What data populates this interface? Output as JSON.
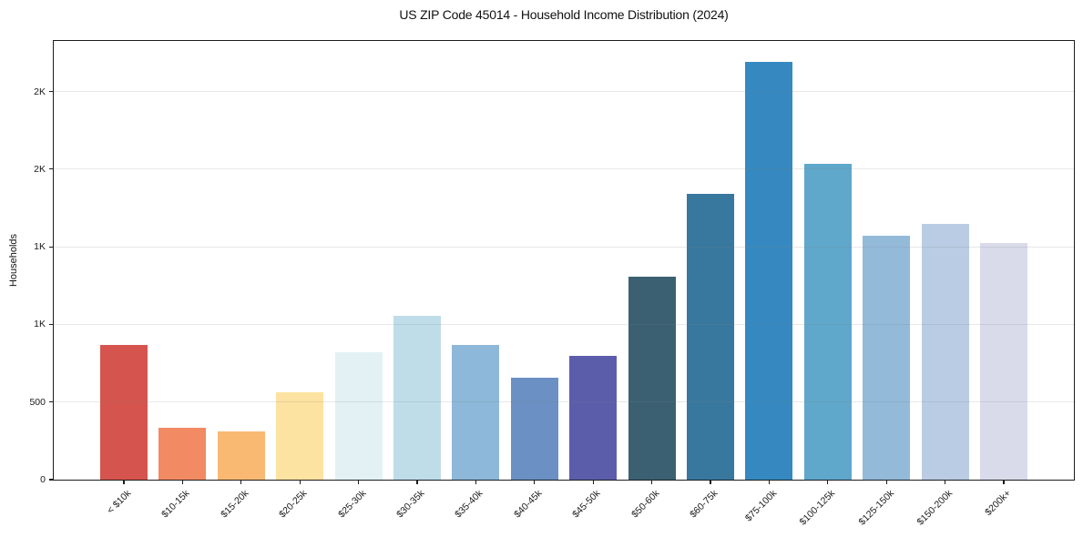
{
  "chart_data": {
    "type": "bar",
    "title": "US ZIP Code 45014 - Household Income Distribution (2024)",
    "xlabel": "",
    "ylabel": "Households",
    "categories": [
      "< $10k",
      "$10-15k",
      "$15-20k",
      "$20-25k",
      "$25-30k",
      "$30-35k",
      "$35-40k",
      "$40-45k",
      "$45-50k",
      "$50-60k",
      "$60-75k",
      "$75-100k",
      "$100-125k",
      "$125-150k",
      "$150-200k",
      "$200k+"
    ],
    "values": [
      865,
      333,
      310,
      565,
      818,
      1058,
      870,
      655,
      800,
      1305,
      1843,
      2691,
      2036,
      1574,
      1650,
      1527
    ],
    "bar_colors": [
      "#d5544e",
      "#f28a64",
      "#fab973",
      "#fde3a1",
      "#e4f1f4",
      "#bedde9",
      "#8db8d9",
      "#6a90c4",
      "#5b5dab",
      "#3b6072",
      "#38789f",
      "#3589c0",
      "#5fa7cb",
      "#93bad9",
      "#b9cce3",
      "#d9dbea"
    ],
    "ylim": [
      0,
      2826
    ],
    "yticks": [
      {
        "value": 0,
        "label": "0"
      },
      {
        "value": 500,
        "label": "500"
      },
      {
        "value": 1000,
        "label": "1K"
      },
      {
        "value": 1500,
        "label": "1K"
      },
      {
        "value": 2000,
        "label": "2K"
      },
      {
        "value": 2500,
        "label": "2K"
      }
    ],
    "grid": "horizontal",
    "legend": "none",
    "colors": {
      "background": "#ffffff",
      "spine": "#1c1c1c",
      "text": "#1a1a1a",
      "grid": "#e8e8e8"
    }
  }
}
